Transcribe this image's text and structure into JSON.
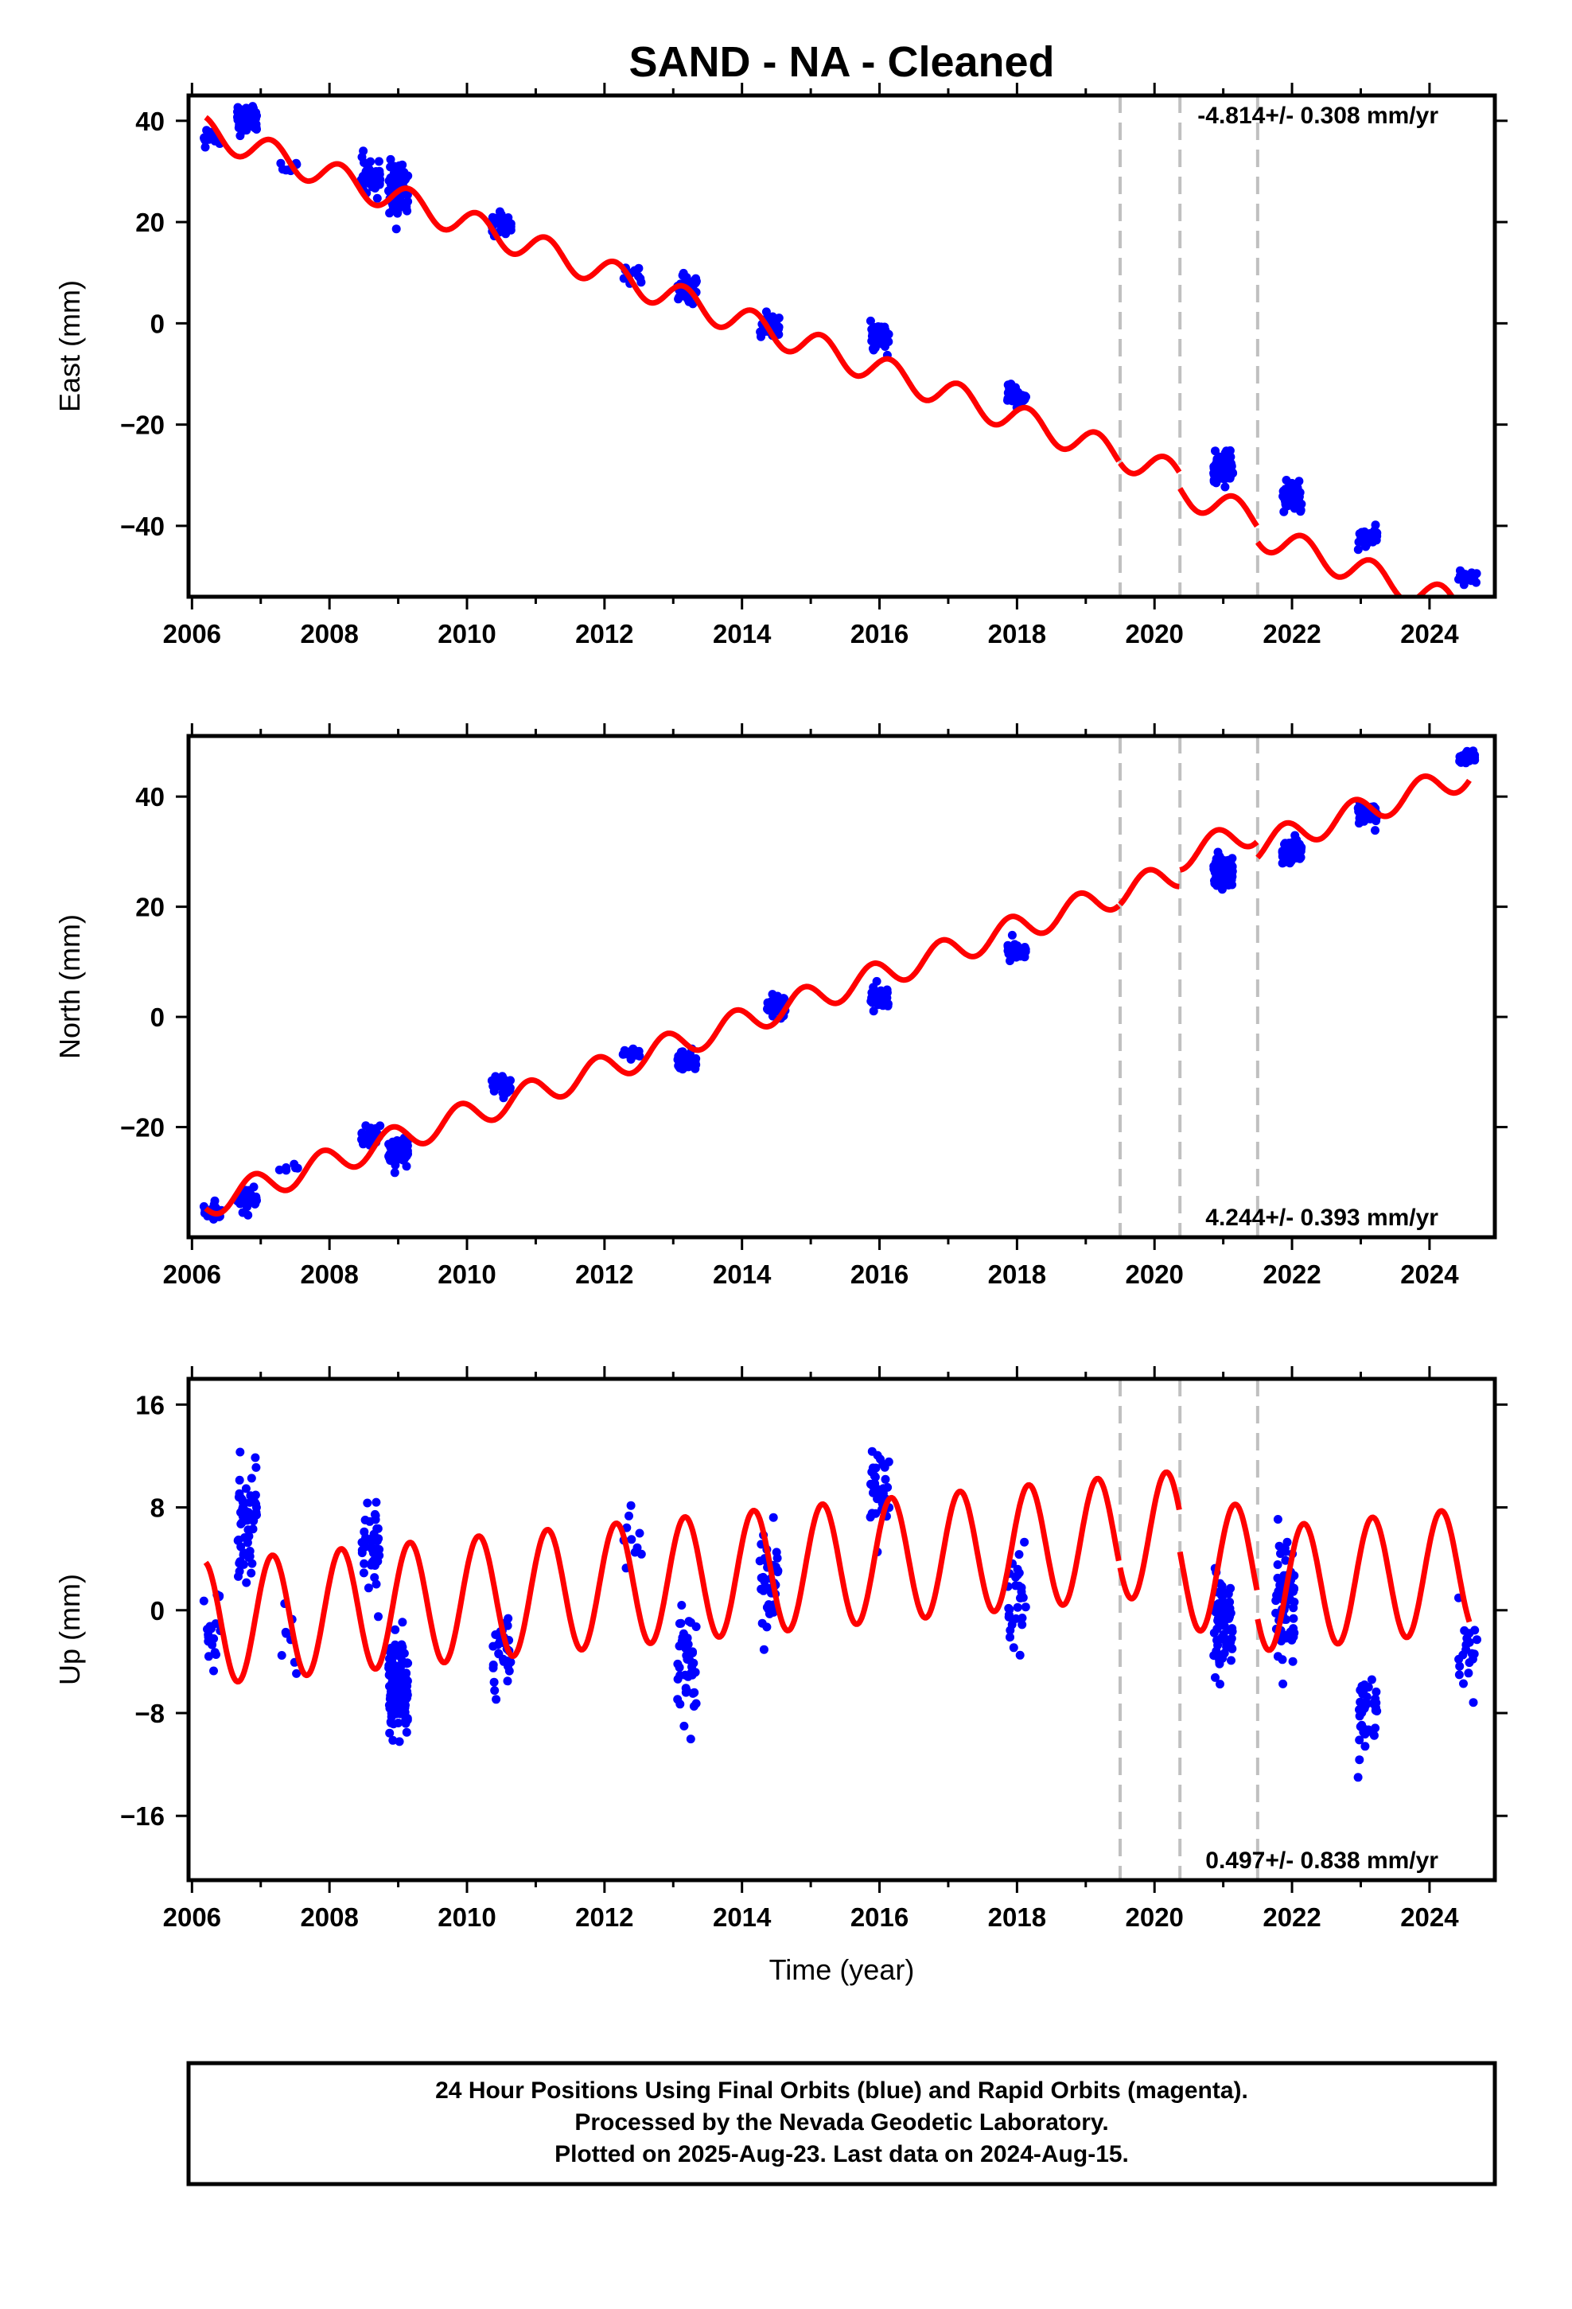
{
  "title": "SAND  - NA - Cleaned",
  "xlabel": "Time (year)",
  "footer": {
    "line1": "24 Hour Positions Using Final Orbits (blue) and Rapid Orbits (magenta).",
    "line2": "Processed by the Nevada Geodetic Laboratory.",
    "line3": "Plotted on 2025-Aug-23. Last data on 2024-Aug-15."
  },
  "colors": {
    "data": "#0000ff",
    "model": "#ff0000",
    "breaks": "#c0c0c0",
    "axes": "#000000"
  },
  "chart_data": [
    {
      "type": "scatter",
      "panel": "east",
      "ylabel": "East (mm)",
      "rate_text": "-4.814+/- 0.308 mm/yr",
      "xlim": [
        2005.95,
        2024.95
      ],
      "ylim": [
        -54,
        45
      ],
      "xticks": [
        2006,
        2008,
        2010,
        2012,
        2014,
        2016,
        2018,
        2020,
        2022,
        2024
      ],
      "yticks": [
        40,
        20,
        0,
        -20,
        -40
      ],
      "breaks": [
        2019.5,
        2020.37,
        2021.5
      ],
      "model": {
        "intercept": 38.0,
        "t0": 2006.2,
        "rate": -4.814,
        "annual": 2.8,
        "phase": 0.6,
        "offsets": [
          [
            2019.5,
            0.0
          ],
          [
            2020.37,
            -3.0
          ],
          [
            2021.5,
            -3.0
          ]
        ]
      },
      "clusters": [
        {
          "x": 2006.3,
          "mean": 36.5,
          "n": 20,
          "spread": 1.5
        },
        {
          "x": 2006.8,
          "mean": 40.5,
          "n": 60,
          "spread": 2.5
        },
        {
          "x": 2007.4,
          "mean": 30.5,
          "n": 8,
          "spread": 1.2
        },
        {
          "x": 2008.6,
          "mean": 29.5,
          "n": 40,
          "spread": 2.5
        },
        {
          "x": 2009.0,
          "mean": 27.0,
          "n": 90,
          "spread": 4.5
        },
        {
          "x": 2010.5,
          "mean": 19.5,
          "n": 30,
          "spread": 2.0
        },
        {
          "x": 2012.4,
          "mean": 10.0,
          "n": 12,
          "spread": 2.0
        },
        {
          "x": 2013.2,
          "mean": 7.0,
          "n": 40,
          "spread": 2.5
        },
        {
          "x": 2014.4,
          "mean": -1.0,
          "n": 40,
          "spread": 2.0
        },
        {
          "x": 2016.0,
          "mean": -2.5,
          "n": 40,
          "spread": 2.5
        },
        {
          "x": 2018.0,
          "mean": -14.5,
          "n": 30,
          "spread": 2.0
        },
        {
          "x": 2021.0,
          "mean": -28.5,
          "n": 100,
          "spread": 2.5
        },
        {
          "x": 2022.0,
          "mean": -34.5,
          "n": 80,
          "spread": 2.5
        },
        {
          "x": 2023.1,
          "mean": -42.5,
          "n": 40,
          "spread": 1.8
        },
        {
          "x": 2024.55,
          "mean": -50.0,
          "n": 20,
          "spread": 1.5
        }
      ]
    },
    {
      "type": "scatter",
      "panel": "north",
      "ylabel": "North (mm)",
      "rate_text": "4.244+/- 0.393 mm/yr",
      "xlim": [
        2005.95,
        2024.95
      ],
      "ylim": [
        -40,
        51
      ],
      "xticks": [
        2006,
        2008,
        2010,
        2012,
        2014,
        2016,
        2018,
        2020,
        2022,
        2024
      ],
      "yticks": [
        40,
        20,
        0,
        -20
      ],
      "breaks": [
        2019.5,
        2020.37,
        2021.5
      ],
      "model": {
        "intercept": -34.0,
        "t0": 2006.2,
        "rate": 4.244,
        "annual": 2.5,
        "phase": 2.2,
        "offsets": [
          [
            2019.5,
            0.0
          ],
          [
            2020.37,
            3.0
          ],
          [
            2021.5,
            -3.0
          ]
        ]
      },
      "clusters": [
        {
          "x": 2006.3,
          "mean": -35.5,
          "n": 20,
          "spread": 1.5
        },
        {
          "x": 2006.8,
          "mean": -33.0,
          "n": 40,
          "spread": 1.8
        },
        {
          "x": 2007.4,
          "mean": -27.0,
          "n": 6,
          "spread": 1.0
        },
        {
          "x": 2008.6,
          "mean": -21.5,
          "n": 30,
          "spread": 1.5
        },
        {
          "x": 2009.0,
          "mean": -24.5,
          "n": 90,
          "spread": 2.5
        },
        {
          "x": 2010.5,
          "mean": -12.5,
          "n": 30,
          "spread": 1.8
        },
        {
          "x": 2012.4,
          "mean": -7.0,
          "n": 10,
          "spread": 1.5
        },
        {
          "x": 2013.2,
          "mean": -8.0,
          "n": 40,
          "spread": 1.8
        },
        {
          "x": 2014.5,
          "mean": 2.0,
          "n": 40,
          "spread": 2.5
        },
        {
          "x": 2016.0,
          "mean": 3.5,
          "n": 40,
          "spread": 2.0
        },
        {
          "x": 2018.0,
          "mean": 12.5,
          "n": 30,
          "spread": 1.8
        },
        {
          "x": 2021.0,
          "mean": 26.5,
          "n": 100,
          "spread": 2.5
        },
        {
          "x": 2022.0,
          "mean": 30.0,
          "n": 80,
          "spread": 2.0
        },
        {
          "x": 2023.1,
          "mean": 37.0,
          "n": 40,
          "spread": 1.8
        },
        {
          "x": 2024.55,
          "mean": 47.0,
          "n": 20,
          "spread": 1.2
        }
      ]
    },
    {
      "type": "scatter",
      "panel": "up",
      "ylabel": "Up (mm)",
      "rate_text": "0.497+/- 0.838 mm/yr",
      "xlim": [
        2005.95,
        2024.95
      ],
      "ylim": [
        -21,
        18
      ],
      "xticks": [
        2006,
        2008,
        2010,
        2012,
        2014,
        2016,
        2018,
        2020,
        2022,
        2024
      ],
      "yticks": [
        16,
        8,
        0,
        -8,
        -16
      ],
      "breaks": [
        2019.5,
        2020.37,
        2021.5
      ],
      "model": {
        "intercept": -1.0,
        "t0": 2006.2,
        "rate": 0.497,
        "annual": 4.8,
        "phase": 0.5,
        "offsets": [
          [
            2019.5,
            0.0
          ],
          [
            2020.37,
            -3.0
          ],
          [
            2021.5,
            -2.0
          ]
        ]
      },
      "clusters": [
        {
          "x": 2006.3,
          "mean": -1.5,
          "n": 20,
          "spread": 3.5
        },
        {
          "x": 2006.8,
          "mean": 7.0,
          "n": 60,
          "spread": 4.0
        },
        {
          "x": 2007.4,
          "mean": -2.0,
          "n": 8,
          "spread": 3.5
        },
        {
          "x": 2008.6,
          "mean": 5.0,
          "n": 40,
          "spread": 3.5
        },
        {
          "x": 2009.0,
          "mean": -6.0,
          "n": 120,
          "spread": 3.5
        },
        {
          "x": 2010.5,
          "mean": -3.5,
          "n": 30,
          "spread": 2.5
        },
        {
          "x": 2012.4,
          "mean": 6.0,
          "n": 10,
          "spread": 3.0
        },
        {
          "x": 2013.2,
          "mean": -4.0,
          "n": 40,
          "spread": 4.0
        },
        {
          "x": 2014.4,
          "mean": 2.0,
          "n": 40,
          "spread": 4.0
        },
        {
          "x": 2016.0,
          "mean": 10.0,
          "n": 40,
          "spread": 3.0
        },
        {
          "x": 2018.0,
          "mean": 1.0,
          "n": 30,
          "spread": 3.5
        },
        {
          "x": 2021.0,
          "mean": -1.0,
          "n": 80,
          "spread": 3.5
        },
        {
          "x": 2021.9,
          "mean": 0.5,
          "n": 70,
          "spread": 4.0
        },
        {
          "x": 2023.1,
          "mean": -8.0,
          "n": 40,
          "spread": 3.5
        },
        {
          "x": 2024.55,
          "mean": -3.5,
          "n": 20,
          "spread": 3.5
        }
      ]
    }
  ]
}
